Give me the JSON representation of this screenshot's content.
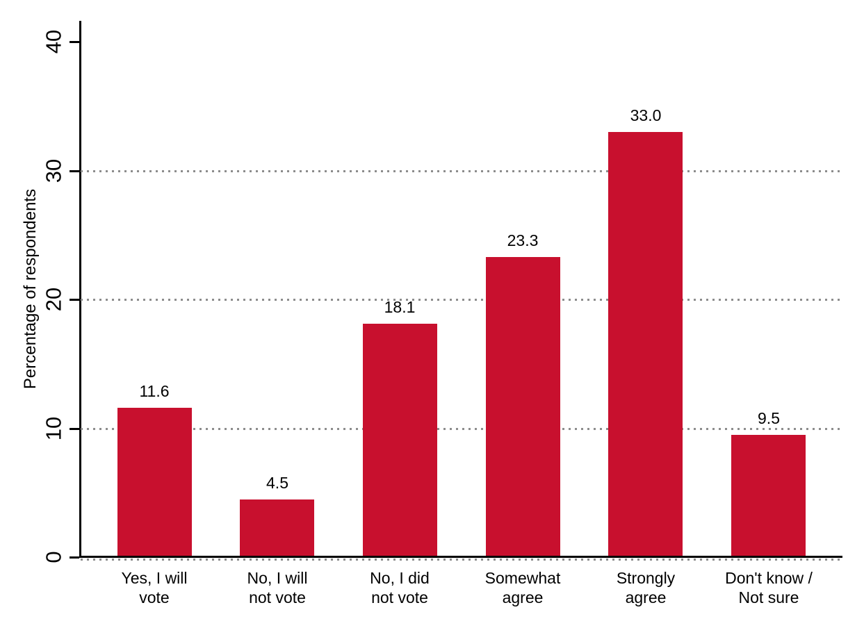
{
  "chart_data": {
    "type": "bar",
    "title": "",
    "xlabel": "",
    "ylabel": "Percentage of respondents",
    "categories": [
      "Yes, I will\nvote",
      "No, I will\nnot vote",
      "No, I did\nnot vote",
      "Somewhat\nagree",
      "Strongly\nagree",
      "Don't know /\nNot sure"
    ],
    "values": [
      11.6,
      4.5,
      18.1,
      23.3,
      33.0,
      9.5
    ],
    "value_labels": [
      "11.6",
      "4.5",
      "18.1",
      "23.3",
      "33.0",
      "9.5"
    ],
    "ylim": [
      0,
      40
    ],
    "yticks": [
      0,
      10,
      20,
      30,
      40
    ],
    "ytick_labels": [
      "0",
      "10",
      "20",
      "30",
      "40"
    ],
    "grid_ticks": [
      0,
      10,
      20,
      30
    ],
    "grid_style": "dotted",
    "legend": "none",
    "bar_color": "#C8102E",
    "gridline_color": "#8C8C8C",
    "axis_color": "#000000",
    "text_color": "#000000"
  }
}
